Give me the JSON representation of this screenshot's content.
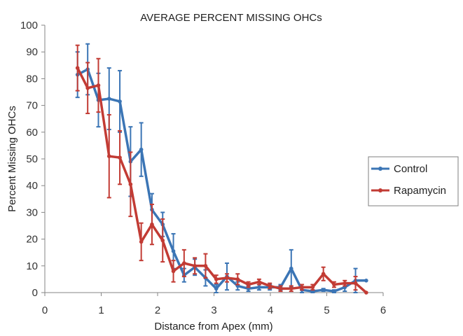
{
  "chart_data": {
    "type": "line",
    "title": "AVERAGE PERCENT MISSING OHCs",
    "xlabel": "Distance from Apex (mm)",
    "ylabel": "Percent Missing OHCs",
    "xlim": [
      0,
      6
    ],
    "ylim": [
      0,
      100
    ],
    "xticks": [
      0,
      1,
      2,
      3,
      4,
      5,
      6
    ],
    "yticks": [
      0,
      10,
      20,
      30,
      40,
      50,
      60,
      70,
      80,
      90,
      100
    ],
    "grid": false,
    "legend_position": "right",
    "series": [
      {
        "name": "Control",
        "color": "#3b75b5",
        "points": [
          {
            "x": 0.58,
            "y": 81.5,
            "err": 8.5
          },
          {
            "x": 0.76,
            "y": 83.5,
            "err": 9.5
          },
          {
            "x": 0.95,
            "y": 72.0,
            "err": 10.0
          },
          {
            "x": 1.14,
            "y": 72.5,
            "err": 11.5
          },
          {
            "x": 1.33,
            "y": 71.5,
            "err": 11.5
          },
          {
            "x": 1.52,
            "y": 49.0,
            "err": 13.0
          },
          {
            "x": 1.71,
            "y": 53.5,
            "err": 10.0
          },
          {
            "x": 1.9,
            "y": 31.0,
            "err": 6.0
          },
          {
            "x": 2.09,
            "y": 25.5,
            "err": 4.5
          },
          {
            "x": 2.28,
            "y": 15.5,
            "err": 6.5
          },
          {
            "x": 2.47,
            "y": 6.5,
            "err": 2.5
          },
          {
            "x": 2.66,
            "y": 9.5,
            "err": 3.0
          },
          {
            "x": 2.85,
            "y": 5.5,
            "err": 3.0
          },
          {
            "x": 3.04,
            "y": 1.5,
            "err": 1.5
          },
          {
            "x": 3.23,
            "y": 6.0,
            "err": 5.0
          },
          {
            "x": 3.42,
            "y": 2.5,
            "err": 1.5
          },
          {
            "x": 3.61,
            "y": 1.5,
            "err": 1.0
          },
          {
            "x": 3.8,
            "y": 2.0,
            "err": 1.0
          },
          {
            "x": 3.99,
            "y": 2.0,
            "err": 1.0
          },
          {
            "x": 4.18,
            "y": 2.0,
            "err": 1.0
          },
          {
            "x": 4.37,
            "y": 9.0,
            "err": 7.0
          },
          {
            "x": 4.56,
            "y": 1.0,
            "err": 1.0
          },
          {
            "x": 4.75,
            "y": 0.5,
            "err": 0.5
          },
          {
            "x": 4.94,
            "y": 1.0,
            "err": 0.5
          },
          {
            "x": 5.13,
            "y": 0.5,
            "err": 0.5
          },
          {
            "x": 5.32,
            "y": 2.0,
            "err": 1.5
          },
          {
            "x": 5.51,
            "y": 4.5,
            "err": 4.5
          },
          {
            "x": 5.7,
            "y": 4.5,
            "err": 0.0
          }
        ]
      },
      {
        "name": "Rapamycin",
        "color": "#c23b34",
        "points": [
          {
            "x": 0.58,
            "y": 84.0,
            "err": 8.5
          },
          {
            "x": 0.76,
            "y": 76.5,
            "err": 9.5
          },
          {
            "x": 0.95,
            "y": 77.5,
            "err": 10.0
          },
          {
            "x": 1.14,
            "y": 51.0,
            "err": 15.5
          },
          {
            "x": 1.33,
            "y": 50.5,
            "err": 10.0
          },
          {
            "x": 1.52,
            "y": 40.5,
            "err": 12.0
          },
          {
            "x": 1.71,
            "y": 19.0,
            "err": 7.0
          },
          {
            "x": 1.9,
            "y": 25.5,
            "err": 7.5
          },
          {
            "x": 2.09,
            "y": 19.5,
            "err": 8.0
          },
          {
            "x": 2.28,
            "y": 8.0,
            "err": 4.0
          },
          {
            "x": 2.47,
            "y": 11.0,
            "err": 5.0
          },
          {
            "x": 2.66,
            "y": 10.0,
            "err": 3.0
          },
          {
            "x": 2.85,
            "y": 10.0,
            "err": 4.5
          },
          {
            "x": 3.04,
            "y": 5.0,
            "err": 1.5
          },
          {
            "x": 3.23,
            "y": 5.5,
            "err": 1.5
          },
          {
            "x": 3.42,
            "y": 5.0,
            "err": 2.0
          },
          {
            "x": 3.61,
            "y": 3.0,
            "err": 1.0
          },
          {
            "x": 3.8,
            "y": 4.0,
            "err": 1.0
          },
          {
            "x": 3.99,
            "y": 2.5,
            "err": 1.0
          },
          {
            "x": 4.18,
            "y": 1.5,
            "err": 1.0
          },
          {
            "x": 4.37,
            "y": 1.5,
            "err": 1.0
          },
          {
            "x": 4.56,
            "y": 2.0,
            "err": 1.0
          },
          {
            "x": 4.75,
            "y": 2.0,
            "err": 1.0
          },
          {
            "x": 4.94,
            "y": 7.0,
            "err": 2.5
          },
          {
            "x": 5.13,
            "y": 3.0,
            "err": 1.0
          },
          {
            "x": 5.32,
            "y": 3.5,
            "err": 1.0
          },
          {
            "x": 5.51,
            "y": 3.5,
            "err": 2.5
          },
          {
            "x": 5.7,
            "y": 0.0,
            "err": 0.0
          }
        ]
      }
    ]
  }
}
